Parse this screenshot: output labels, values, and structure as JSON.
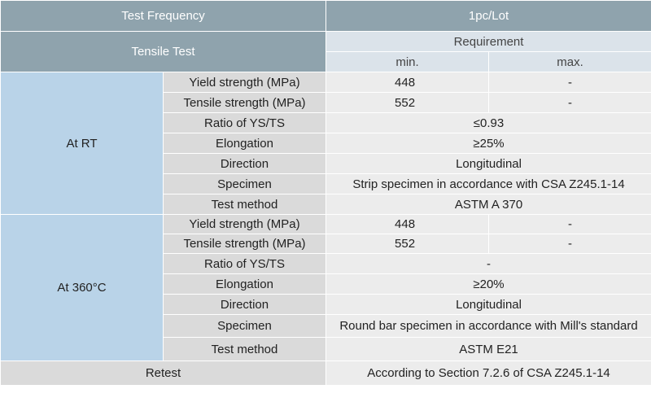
{
  "header": {
    "frequency_label": "Test Frequency",
    "frequency_value": "1pc/Lot",
    "tensile_test": "Tensile Test",
    "requirement": "Requirement",
    "min": "min.",
    "max": "max."
  },
  "rt": {
    "label": "At RT",
    "rows": [
      {
        "name": "Yield strength (MPa)",
        "min": "448",
        "max": "-"
      },
      {
        "name": "Tensile strength (MPa)",
        "min": "552",
        "max": "-"
      },
      {
        "name": "Ratio of YS/TS",
        "value": "≤0.93"
      },
      {
        "name": "Elongation",
        "value": "≥25%"
      },
      {
        "name": "Direction",
        "value": "Longitudinal"
      },
      {
        "name": "Specimen",
        "value": "Strip specimen in accordance with CSA Z245.1-14"
      },
      {
        "name": "Test method",
        "value": "ASTM A 370"
      }
    ]
  },
  "ht": {
    "label": "At 360°C",
    "rows": [
      {
        "name": "Yield strength (MPa)",
        "min": "448",
        "max": "-"
      },
      {
        "name": "Tensile strength (MPa)",
        "min": "552",
        "max": "-"
      },
      {
        "name": "Ratio of YS/TS",
        "value": "-"
      },
      {
        "name": "Elongation",
        "value": "≥20%"
      },
      {
        "name": "Direction",
        "value": "Longitudinal"
      },
      {
        "name": "Specimen",
        "value": "Round bar specimen in accordance with Mill's standard"
      },
      {
        "name": "Test method",
        "value": "ASTM E21"
      }
    ]
  },
  "retest": {
    "label": "Retest",
    "value": "According to Section 7.2.6 of CSA Z245.1-14"
  }
}
